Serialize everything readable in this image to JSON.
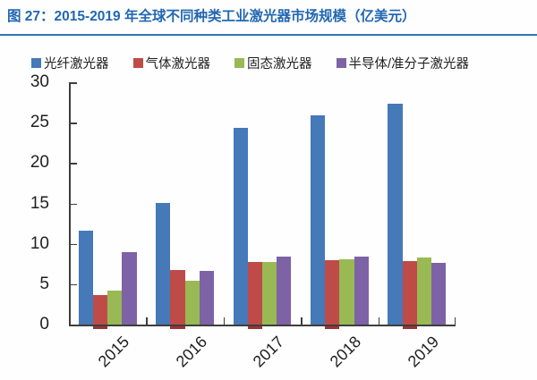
{
  "title": {
    "text": "图 27：2015-2019 年全球不同种类工业激光器市场规模（亿美元）"
  },
  "colors": {
    "title_text": "#2267B2",
    "title_rule": "#2E74B5",
    "axis": "#3D3D3D",
    "label_text": "#1F1F1F",
    "background": "#FEFEFE",
    "gas_bar_foot": "#963634"
  },
  "chart_data": {
    "type": "bar",
    "title": "2015-2019 年全球不同种类工业激光器市场规模（亿美元）",
    "unit": "亿美元",
    "categories": [
      "2015",
      "2016",
      "2017",
      "2018",
      "2019"
    ],
    "series": [
      {
        "name": "光纤激光器",
        "color": "#4579B8",
        "values": [
          11.6,
          15.1,
          24.4,
          25.9,
          27.3
        ]
      },
      {
        "name": "气体激光器",
        "color": "#BE4B48",
        "values": [
          3.6,
          6.8,
          7.8,
          8.0,
          7.9
        ]
      },
      {
        "name": "固态激光器",
        "color": "#98B954",
        "values": [
          4.2,
          5.4,
          7.8,
          8.1,
          8.3
        ]
      },
      {
        "name": "半导体/准分子激光器",
        "color": "#7D62A6",
        "values": [
          9.0,
          6.6,
          8.4,
          8.4,
          7.6
        ]
      }
    ],
    "ylim": [
      0,
      30
    ],
    "yticks": [
      0,
      5,
      10,
      15,
      20,
      25,
      30
    ],
    "grid": false,
    "legend_position": "top",
    "xlabel": "",
    "ylabel": ""
  }
}
